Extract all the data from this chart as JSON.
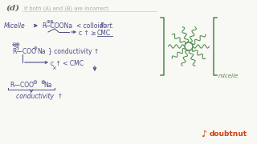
{
  "bg_color": "#f8f8f4",
  "ink_color": "#4a4a8a",
  "green_color": "#4a8a4a",
  "orange_color": "#d04010",
  "gray_color": "#888888",
  "title_d": "(d)",
  "subtitle": "If both (A) and (B) are incorrect.",
  "doubtnut_text": "doubtnut",
  "figw": 3.2,
  "figh": 1.8,
  "dpi": 100
}
